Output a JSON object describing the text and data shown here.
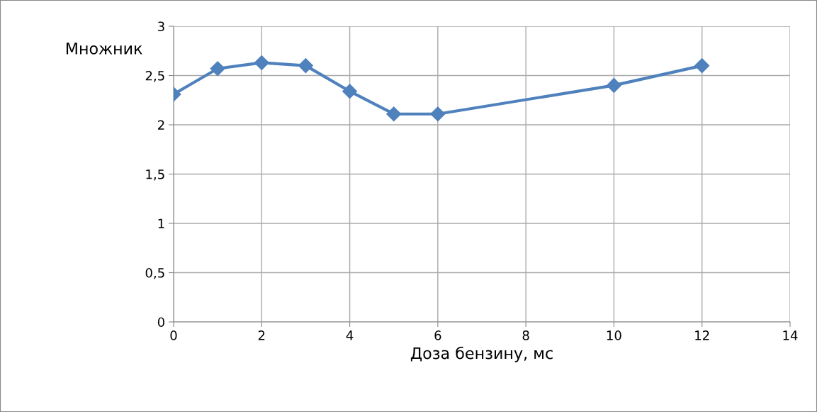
{
  "chart_data": {
    "type": "line",
    "xlabel": "Доза бензину, мс",
    "ylabel": "Множник",
    "x": [
      0,
      1,
      2,
      3,
      4,
      5,
      6,
      10,
      12
    ],
    "series": [
      {
        "color": "#4f81bd",
        "values": [
          2.31,
          2.57,
          2.63,
          2.6,
          2.34,
          2.11,
          2.11,
          2.4,
          2.6
        ]
      }
    ],
    "xlim": [
      0,
      14
    ],
    "xticks": [
      0,
      2,
      4,
      6,
      8,
      10,
      12,
      14
    ],
    "ylim": [
      0,
      3
    ],
    "yticks": [
      0,
      {
        "value": 0.5,
        "label": "0,5"
      },
      1,
      {
        "value": 1.5,
        "label": "1,5"
      },
      2,
      {
        "value": 2.5,
        "label": "2,5"
      },
      3
    ],
    "grid": true,
    "marker": "diamond",
    "line_style": "solid",
    "legend": false
  }
}
